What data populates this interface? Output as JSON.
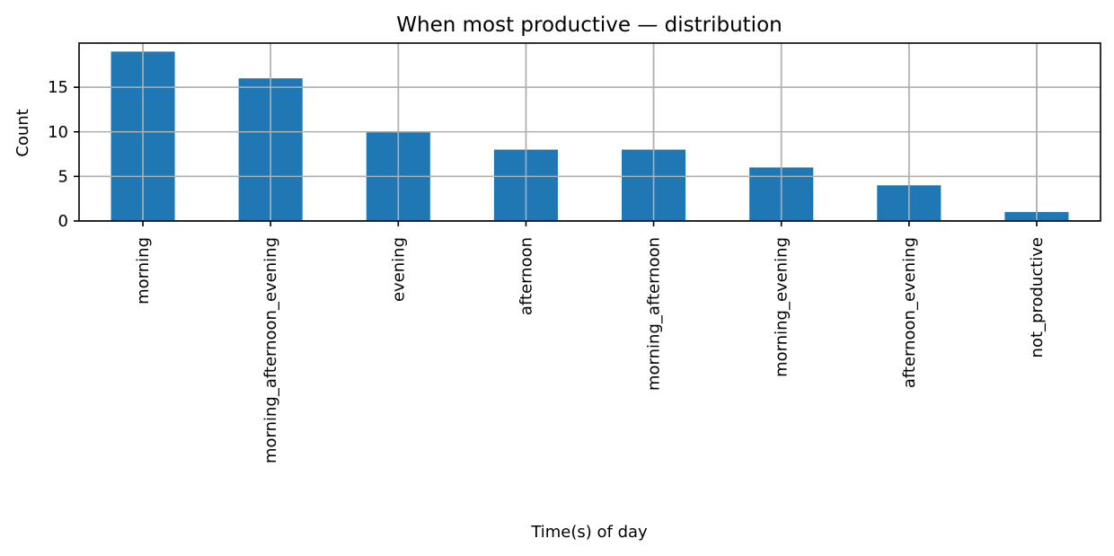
{
  "chart_data": {
    "type": "bar",
    "title": "When most productive — distribution",
    "xlabel": "Time(s) of day",
    "ylabel": "Count",
    "categories": [
      "morning",
      "morning_afternoon_evening",
      "evening",
      "afternoon",
      "morning_afternoon",
      "morning_evening",
      "afternoon_evening",
      "not_productive"
    ],
    "values": [
      19,
      16,
      10,
      8,
      8,
      6,
      4,
      1
    ],
    "ylim": [
      0,
      19.95
    ],
    "yticks": [
      0,
      5,
      10,
      15
    ],
    "grid": true,
    "bar_color": "#1f77b4",
    "x_tick_rotation_deg": 90
  }
}
